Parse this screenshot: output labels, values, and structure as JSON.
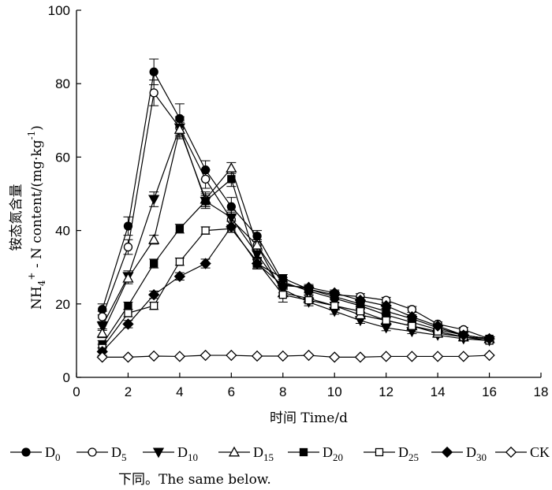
{
  "note": "下同。The same below.",
  "chart_data": {
    "type": "line",
    "title": "",
    "xlabel": "时间 Time/d",
    "ylabel": {
      "chinese": "铵态氮含量",
      "parts": [
        "NH",
        "4",
        "+",
        " - N content/(mg·kg",
        "-1",
        ")"
      ]
    },
    "xlim": [
      0,
      18
    ],
    "ylim": [
      0,
      100
    ],
    "xticks": [
      0,
      2,
      4,
      6,
      8,
      10,
      12,
      14,
      16,
      18
    ],
    "yticks": [
      0,
      20,
      40,
      60,
      80,
      100
    ],
    "x": [
      1,
      2,
      3,
      4,
      5,
      6,
      7,
      8,
      9,
      10,
      11,
      12,
      13,
      14,
      15,
      16
    ],
    "legend_position": "bottom",
    "series": [
      {
        "name": "D",
        "sub": "0",
        "marker": "circle",
        "fill": "filled",
        "values": [
          18.5,
          41.2,
          83.2,
          70.5,
          56.5,
          46.5,
          38.5,
          26.0,
          23.5,
          21.5,
          19.5,
          17.0,
          15.0,
          13.0,
          11.5,
          10.5
        ],
        "errors": [
          1.5,
          2.5,
          3.5,
          4.0,
          2.5,
          2.5,
          1.5,
          1.2,
          1.0,
          1.0,
          1.0,
          0.8,
          0.8,
          0.8,
          0.6,
          0.6
        ]
      },
      {
        "name": "D",
        "sub": "5",
        "marker": "circle",
        "fill": "open",
        "values": [
          16.5,
          35.5,
          77.5,
          68.0,
          54.0,
          43.0,
          36.0,
          25.5,
          24.0,
          22.5,
          22.0,
          21.0,
          18.5,
          14.5,
          13.0,
          10.5
        ],
        "errors": [
          1.5,
          2.0,
          3.5,
          3.0,
          2.5,
          2.0,
          1.5,
          1.2,
          1.0,
          1.0,
          0.8,
          0.8,
          0.8,
          0.6,
          0.6,
          0.6
        ]
      },
      {
        "name": "D",
        "sub": "10",
        "marker": "triangle-down",
        "fill": "filled",
        "values": [
          14.0,
          27.5,
          48.5,
          68.0,
          48.0,
          43.5,
          33.5,
          24.0,
          20.5,
          18.0,
          15.5,
          13.5,
          12.5,
          11.5,
          10.5,
          10.0
        ],
        "errors": [
          1.2,
          1.5,
          2.0,
          2.0,
          2.0,
          2.0,
          1.5,
          1.0,
          1.0,
          0.8,
          0.8,
          0.8,
          0.6,
          0.6,
          0.6,
          0.6
        ]
      },
      {
        "name": "D",
        "sub": "15",
        "marker": "triangle-up",
        "fill": "open",
        "values": [
          12.0,
          27.0,
          37.5,
          67.5,
          48.5,
          57.0,
          36.0,
          23.0,
          21.5,
          19.5,
          17.0,
          15.5,
          14.0,
          12.0,
          11.0,
          10.5
        ],
        "errors": [
          1.2,
          1.5,
          1.2,
          2.0,
          2.0,
          1.5,
          1.5,
          1.0,
          0.8,
          0.8,
          0.8,
          0.8,
          0.6,
          0.6,
          0.6,
          0.6
        ]
      },
      {
        "name": "D",
        "sub": "20",
        "marker": "square",
        "fill": "filled",
        "values": [
          9.0,
          19.5,
          31.0,
          40.5,
          48.0,
          54.0,
          31.0,
          27.0,
          24.0,
          22.0,
          20.0,
          18.0,
          16.0,
          13.5,
          11.5,
          10.5
        ],
        "errors": [
          1.0,
          1.0,
          1.2,
          1.2,
          1.5,
          2.0,
          1.5,
          1.0,
          0.8,
          0.8,
          0.8,
          0.8,
          0.6,
          0.6,
          0.6,
          0.6
        ]
      },
      {
        "name": "D",
        "sub": "25",
        "marker": "square",
        "fill": "open",
        "values": [
          8.0,
          17.5,
          19.5,
          31.5,
          40.0,
          40.5,
          31.5,
          22.5,
          21.0,
          19.5,
          18.0,
          15.5,
          14.0,
          12.5,
          11.0,
          10.0
        ],
        "errors": [
          1.0,
          1.0,
          1.0,
          1.0,
          1.0,
          1.0,
          1.2,
          2.0,
          0.8,
          0.8,
          0.8,
          0.8,
          0.6,
          0.6,
          0.6,
          0.6
        ]
      },
      {
        "name": "D",
        "sub": "30",
        "marker": "diamond",
        "fill": "filled",
        "values": [
          7.0,
          14.5,
          22.5,
          27.5,
          31.0,
          41.0,
          31.0,
          25.0,
          24.5,
          23.0,
          21.0,
          19.5,
          16.5,
          14.0,
          11.5,
          10.5
        ],
        "errors": [
          1.0,
          1.0,
          1.0,
          1.0,
          1.2,
          1.5,
          1.2,
          1.0,
          0.8,
          0.8,
          0.8,
          0.8,
          0.6,
          0.6,
          0.6,
          0.6
        ]
      },
      {
        "name": "CK",
        "sub": "",
        "marker": "diamond",
        "fill": "open",
        "values": [
          5.5,
          5.5,
          5.8,
          5.7,
          6.0,
          6.0,
          5.8,
          5.8,
          6.0,
          5.5,
          5.5,
          5.7,
          5.7,
          5.7,
          5.7,
          6.0
        ],
        "errors": [
          0.3,
          0.3,
          0.3,
          0.3,
          0.3,
          0.3,
          0.3,
          0.3,
          0.3,
          0.3,
          0.3,
          0.3,
          0.3,
          0.3,
          0.3,
          0.3
        ]
      }
    ]
  }
}
